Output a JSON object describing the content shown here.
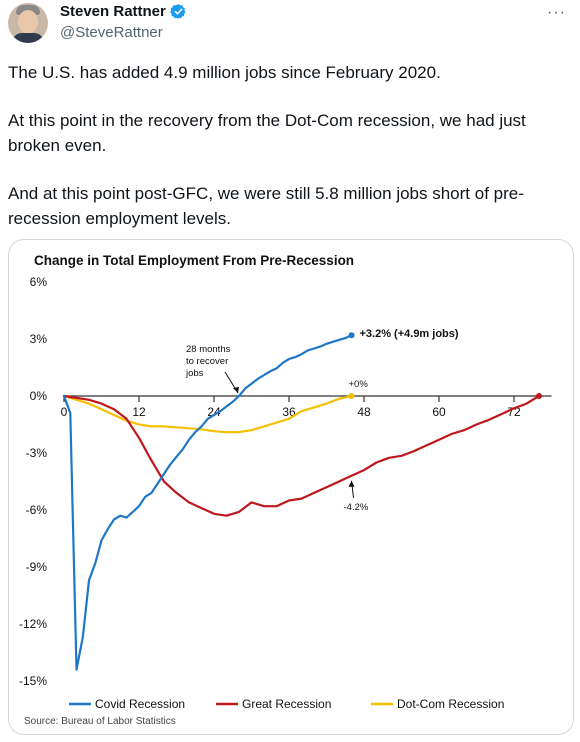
{
  "author": {
    "name": "Steven Rattner",
    "handle": "@SteveRattner",
    "avatar_icon": "avatar-photo",
    "verified_icon": "verified-badge-icon"
  },
  "menu": {
    "more_label": "···"
  },
  "tweet": {
    "paragraphs": [
      "The U.S. has added 4.9 million jobs since February 2020.",
      "At this point in the recovery from the Dot-Com recession, we had just broken even.",
      "And at this point post-GFC, we were still 5.8 million jobs short of pre-recession employment levels."
    ]
  },
  "chart_data": {
    "type": "line",
    "title": "Change in Total Employment From Pre-Recession",
    "source": "Source: Bureau of Labor Statistics",
    "xlim": [
      0,
      78
    ],
    "ylim": [
      -15,
      6
    ],
    "xticks": [
      0,
      12,
      24,
      36,
      48,
      60,
      72
    ],
    "xtick_labels": [
      "0",
      "12",
      "24",
      "36",
      "48",
      "60",
      "72"
    ],
    "yticks": [
      6,
      3,
      0,
      -3,
      -6,
      -9,
      -12,
      -15
    ],
    "ytick_labels": [
      "6%",
      "3%",
      "0%",
      "-3%",
      "-6%",
      "-9%",
      "-12%",
      "-15%"
    ],
    "grid": false,
    "legend": "bottom",
    "series": [
      {
        "name": "Covid Recession",
        "color": "#1f77c8",
        "x": [
          0,
          1,
          2,
          3,
          4,
          5,
          6,
          7,
          8,
          9,
          10,
          11,
          12,
          13,
          14,
          15,
          16,
          17,
          18,
          19,
          20,
          21,
          22,
          23,
          24,
          25,
          26,
          27,
          28,
          29,
          30,
          31,
          32,
          33,
          34,
          35,
          36,
          37,
          38,
          39,
          40,
          41,
          42,
          43,
          44,
          45,
          46
        ],
        "y": [
          0,
          -0.9,
          -14.4,
          -12.7,
          -9.7,
          -8.8,
          -7.6,
          -7.0,
          -6.5,
          -6.3,
          -6.4,
          -6.1,
          -5.8,
          -5.3,
          -5.1,
          -4.6,
          -4.1,
          -3.6,
          -3.2,
          -2.8,
          -2.3,
          -1.9,
          -1.6,
          -1.2,
          -1.0,
          -0.8,
          -0.55,
          -0.3,
          0.0,
          0.4,
          0.65,
          0.9,
          1.1,
          1.3,
          1.45,
          1.75,
          1.95,
          2.05,
          2.2,
          2.4,
          2.5,
          2.6,
          2.75,
          2.85,
          2.95,
          3.05,
          3.2
        ]
      },
      {
        "name": "Great Recession",
        "color": "#c0161d",
        "x": [
          0,
          2,
          4,
          6,
          8,
          10,
          12,
          14,
          16,
          18,
          20,
          22,
          24,
          26,
          28,
          30,
          32,
          34,
          36,
          38,
          40,
          42,
          44,
          46,
          48,
          50,
          52,
          54,
          56,
          58,
          60,
          62,
          64,
          66,
          68,
          70,
          72,
          74,
          76
        ],
        "y": [
          0,
          -0.1,
          -0.2,
          -0.4,
          -0.7,
          -1.2,
          -2.2,
          -3.4,
          -4.5,
          -5.1,
          -5.6,
          -5.9,
          -6.2,
          -6.3,
          -6.1,
          -5.6,
          -5.8,
          -5.8,
          -5.5,
          -5.4,
          -5.1,
          -4.8,
          -4.5,
          -4.2,
          -3.9,
          -3.5,
          -3.25,
          -3.15,
          -2.9,
          -2.6,
          -2.3,
          -2.0,
          -1.8,
          -1.5,
          -1.25,
          -0.95,
          -0.65,
          -0.4,
          0.0
        ]
      },
      {
        "name": "Dot-Com Recession",
        "color": "#f5c000",
        "x": [
          0,
          2,
          4,
          6,
          8,
          10,
          12,
          14,
          16,
          18,
          20,
          22,
          24,
          26,
          28,
          30,
          32,
          34,
          36,
          38,
          40,
          42,
          44,
          46
        ],
        "y": [
          0,
          -0.2,
          -0.4,
          -0.7,
          -1.0,
          -1.3,
          -1.5,
          -1.6,
          -1.6,
          -1.65,
          -1.7,
          -1.75,
          -1.85,
          -1.9,
          -1.9,
          -1.8,
          -1.6,
          -1.4,
          -1.2,
          -0.8,
          -0.6,
          -0.4,
          -0.15,
          0.0
        ]
      }
    ],
    "annotations": [
      {
        "text_lines": [
          "28 months",
          "to recover",
          "jobs"
        ],
        "x": 28,
        "y": 0
      },
      {
        "text_lines": [
          "+3.2% (+4.9m jobs)"
        ],
        "x": 46,
        "y": 3.2
      },
      {
        "text_lines": [
          "+0%"
        ],
        "x": 46,
        "y": 0
      },
      {
        "text_lines": [
          "-4.2%"
        ],
        "x": 46,
        "y": -4.2
      }
    ]
  }
}
